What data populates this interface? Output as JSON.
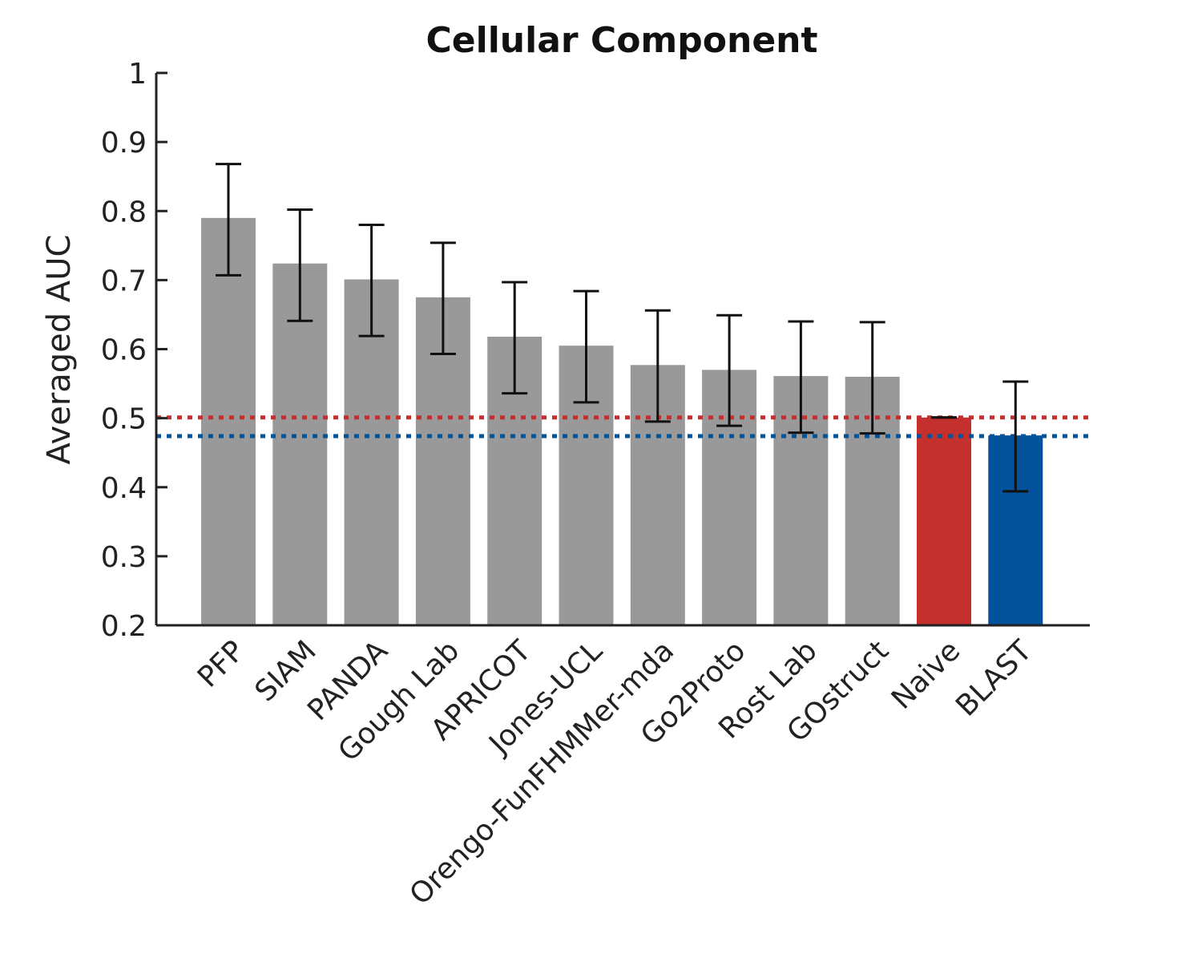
{
  "chart_data": {
    "type": "bar",
    "title": "Cellular Component",
    "xlabel": "",
    "ylabel": "Averaged AUC",
    "ylim": [
      0.2,
      1.0
    ],
    "yticks": [
      0.2,
      0.3,
      0.4,
      0.5,
      0.6,
      0.7,
      0.8,
      0.9,
      1.0
    ],
    "ytick_labels": [
      "0.2",
      "0.3",
      "0.4",
      "0.5",
      "0.6",
      "0.7",
      "0.8",
      "0.9",
      "1"
    ],
    "grid": false,
    "legend": "none",
    "categories": [
      "PFP",
      "SIAM",
      "PANDA",
      "Gough Lab",
      "APRICOT",
      "Jones-UCL",
      "Orengo-FunFHMMer-mda",
      "Go2Proto",
      "Rost Lab",
      "GOstruct",
      "Naive",
      "BLAST"
    ],
    "values": [
      0.79,
      0.724,
      0.701,
      0.675,
      0.618,
      0.605,
      0.577,
      0.57,
      0.561,
      0.56,
      0.501,
      0.475
    ],
    "error_low": [
      0.707,
      0.641,
      0.619,
      0.593,
      0.536,
      0.523,
      0.495,
      0.489,
      0.479,
      0.478,
      0.501,
      0.394
    ],
    "error_high": [
      0.868,
      0.802,
      0.78,
      0.754,
      0.697,
      0.684,
      0.656,
      0.649,
      0.64,
      0.639,
      0.501,
      0.553
    ],
    "bar_colors": [
      "#999999",
      "#999999",
      "#999999",
      "#999999",
      "#999999",
      "#999999",
      "#999999",
      "#999999",
      "#999999",
      "#999999",
      "#c3302d",
      "#03529b"
    ],
    "reference_lines": [
      {
        "y": 0.501,
        "color": "#c3302d",
        "style": "dotted"
      },
      {
        "y": 0.474,
        "color": "#03529b",
        "style": "dotted"
      }
    ]
  }
}
